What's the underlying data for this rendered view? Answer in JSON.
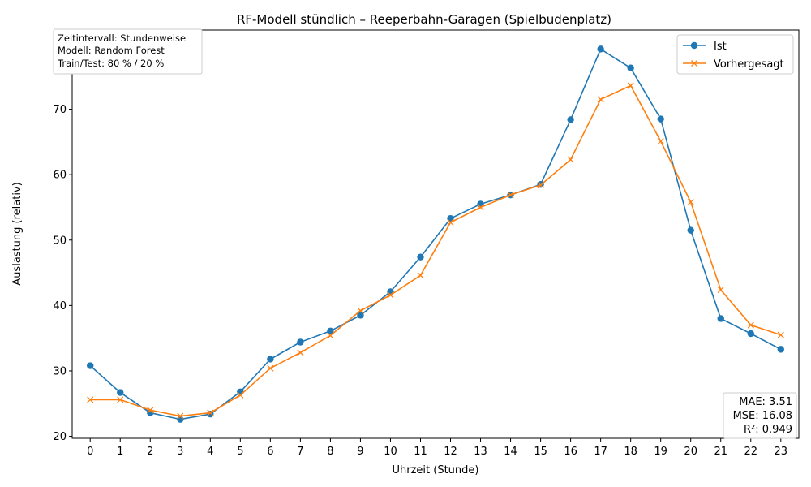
{
  "chart_data": {
    "type": "line",
    "title": "RF-Modell stündlich – Reeperbahn-Garagen (Spielbudenplatz)",
    "xlabel": "Uhrzeit (Stunde)",
    "ylabel": "Auslastung (relativ)",
    "x": [
      0,
      1,
      2,
      3,
      4,
      5,
      6,
      7,
      8,
      9,
      10,
      11,
      12,
      13,
      14,
      15,
      16,
      17,
      18,
      19,
      20,
      21,
      22,
      23
    ],
    "xlim": [
      -0.6,
      23.6
    ],
    "ylim": [
      19.7,
      82.1
    ],
    "yticks": [
      20,
      30,
      40,
      50,
      60,
      70,
      80
    ],
    "grid": false,
    "legend_position": "top-right",
    "series": [
      {
        "name": "Ist",
        "marker": "circle",
        "color": "#1f77b4",
        "values": [
          30.8,
          26.7,
          23.6,
          22.6,
          23.4,
          26.8,
          31.8,
          34.4,
          36.1,
          38.5,
          42.1,
          47.4,
          53.3,
          55.5,
          56.9,
          58.5,
          68.4,
          79.2,
          76.3,
          68.5,
          51.5,
          38.0,
          35.7,
          33.3
        ]
      },
      {
        "name": "Vorhergesagt",
        "marker": "x",
        "color": "#ff7f0e",
        "values": [
          25.6,
          25.6,
          24.0,
          23.1,
          23.6,
          26.3,
          30.4,
          32.8,
          35.4,
          39.2,
          41.6,
          44.6,
          52.7,
          55.0,
          56.9,
          58.4,
          62.3,
          71.5,
          73.6,
          65.1,
          55.8,
          42.4,
          37.0,
          35.5
        ]
      }
    ],
    "info_box": {
      "position": "top-left",
      "lines": [
        "Zeitintervall: Stundenweise",
        "Modell: Random Forest",
        "Train/Test: 80 % / 20 %"
      ]
    },
    "metrics_box": {
      "position": "bottom-right",
      "lines": [
        "MAE: 3.51",
        "MSE: 16.08",
        "R²: 0.949"
      ]
    }
  }
}
